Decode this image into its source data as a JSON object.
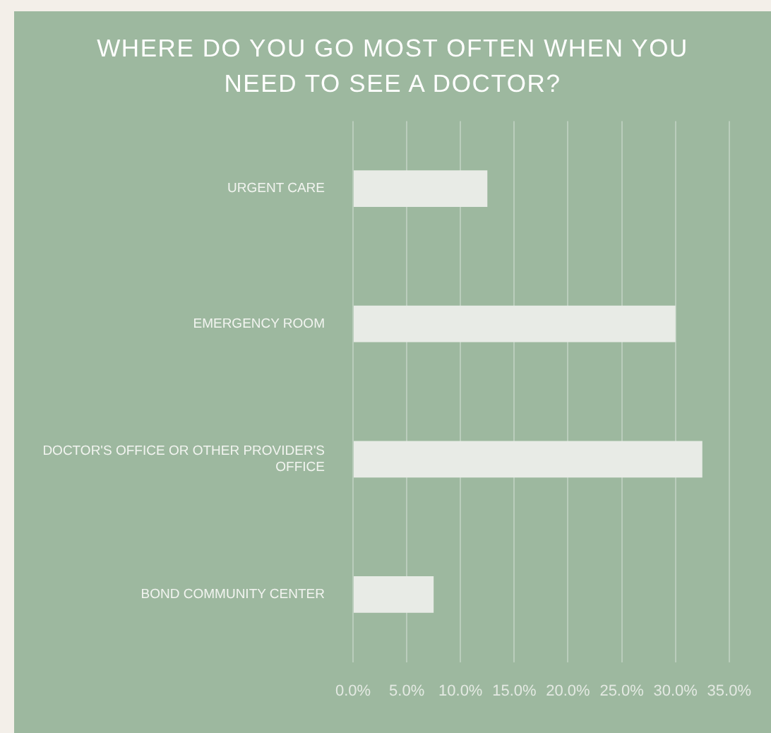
{
  "chart_data": {
    "type": "bar",
    "orientation": "horizontal",
    "title": "WHERE DO YOU GO MOST OFTEN WHEN YOU NEED TO SEE A DOCTOR?",
    "categories": [
      "URGENT CARE",
      "EMERGENCY ROOM",
      "DOCTOR'S OFFICE OR OTHER PROVIDER'S OFFICE",
      "BOND COMMUNITY CENTER"
    ],
    "values": [
      12.5,
      30.0,
      32.5,
      7.5
    ],
    "color": "#e8ebe6",
    "xlim": [
      0,
      35
    ],
    "xticks": [
      {
        "value": 0,
        "label": "0.0%"
      },
      {
        "value": 5,
        "label": "5.0%"
      },
      {
        "value": 10,
        "label": "10.0%"
      },
      {
        "value": 15,
        "label": "15.0%"
      },
      {
        "value": 20,
        "label": "20.0%"
      },
      {
        "value": 25,
        "label": "25.0%"
      },
      {
        "value": 30,
        "label": "30.0%"
      },
      {
        "value": 35,
        "label": "35.0%"
      }
    ],
    "grid": "x",
    "legend": false
  }
}
